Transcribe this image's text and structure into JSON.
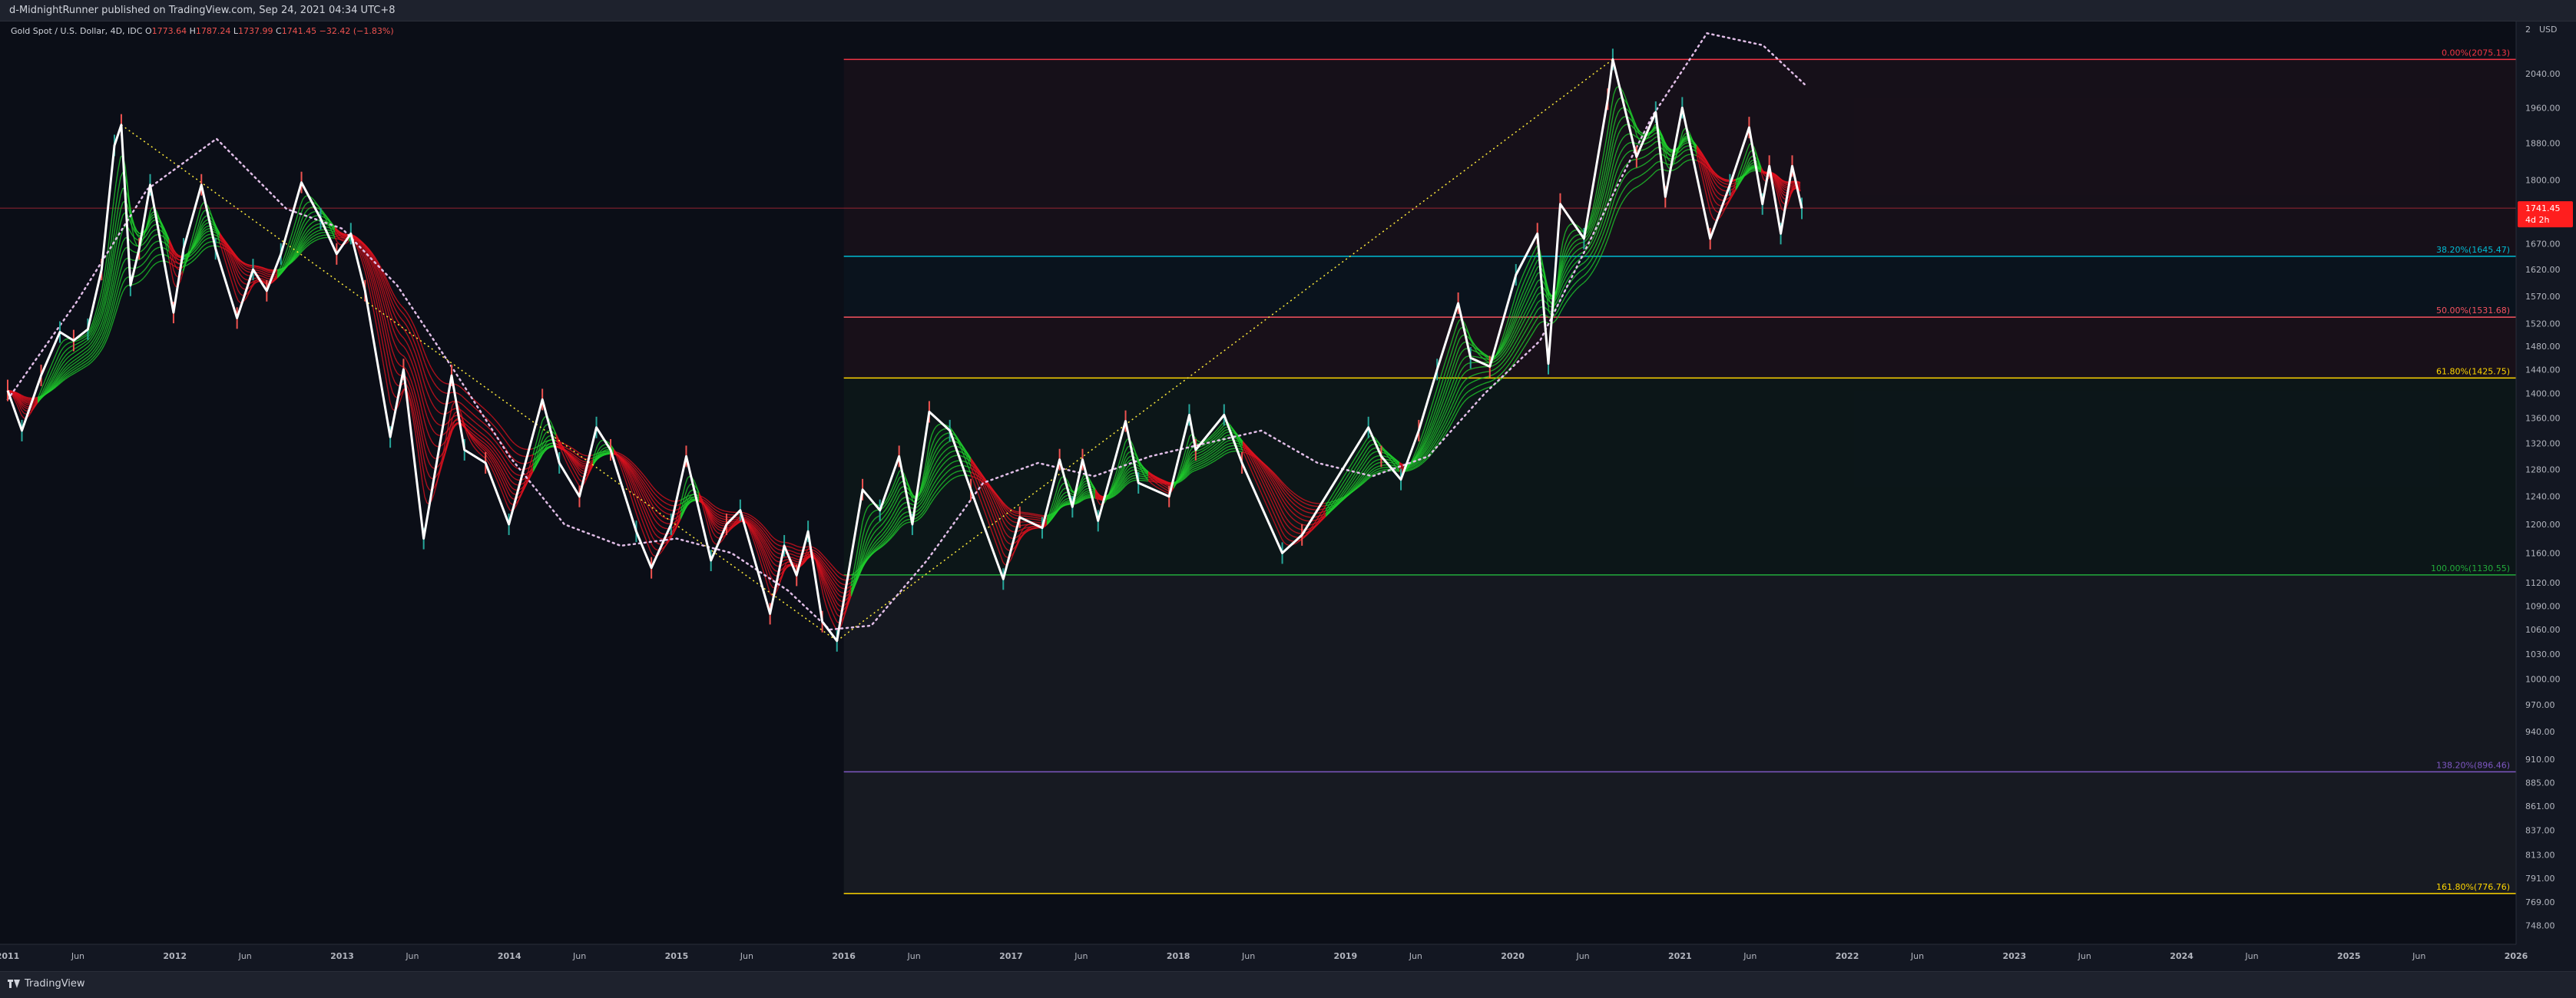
{
  "header": {
    "published_text": "d-MidnightRunner published on TradingView.com, Sep 24, 2021 04:34 UTC+8"
  },
  "footer": {
    "brand": "TradingView",
    "logo_icon": "tradingview-logo-icon"
  },
  "chart_data": {
    "type": "line",
    "symbol_title": "Gold Spot / U.S. Dollar, 4D, IDC",
    "ohlc": {
      "open_label": "O",
      "open": "1773.64",
      "high_label": "H",
      "high": "1787.24",
      "low_label": "L",
      "low": "1737.99",
      "close_label": "C",
      "close": "1741.45",
      "change": "−32.42 (−1.83%)"
    },
    "currency": "USD",
    "price_scale_icon": "2",
    "last_price": {
      "value": 1741.45,
      "label": "1741.45",
      "countdown": "4d 2h",
      "color": "#ff1e1e"
    },
    "y_scale": "log",
    "ylim": [
      735,
      2160
    ],
    "xlim": [
      "2011-01-01",
      "2026-01-01"
    ],
    "y_ticks": [
      "2040.00",
      "1960.00",
      "1880.00",
      "1800.00",
      "1670.00",
      "1620.00",
      "1570.00",
      "1520.00",
      "1480.00",
      "1440.00",
      "1400.00",
      "1360.00",
      "1320.00",
      "1280.00",
      "1240.00",
      "1200.00",
      "1160.00",
      "1120.00",
      "1090.00",
      "1060.00",
      "1030.00",
      "1000.00",
      "970.00",
      "940.00",
      "910.00",
      "885.00",
      "861.00",
      "837.00",
      "813.00",
      "791.00",
      "769.00",
      "748.00"
    ],
    "x_ticks": [
      {
        "label": "2011",
        "t": 2011.0,
        "bold": true
      },
      {
        "label": "Jun",
        "t": 2011.42
      },
      {
        "label": "2012",
        "t": 2012.0,
        "bold": true
      },
      {
        "label": "Jun",
        "t": 2012.42
      },
      {
        "label": "2013",
        "t": 2013.0,
        "bold": true
      },
      {
        "label": "Jun",
        "t": 2013.42
      },
      {
        "label": "2014",
        "t": 2014.0,
        "bold": true
      },
      {
        "label": "Jun",
        "t": 2014.42
      },
      {
        "label": "2015",
        "t": 2015.0,
        "bold": true
      },
      {
        "label": "Jun",
        "t": 2015.42
      },
      {
        "label": "2016",
        "t": 2016.0,
        "bold": true
      },
      {
        "label": "Jun",
        "t": 2016.42
      },
      {
        "label": "2017",
        "t": 2017.0,
        "bold": true
      },
      {
        "label": "Jun",
        "t": 2017.42
      },
      {
        "label": "2018",
        "t": 2018.0,
        "bold": true
      },
      {
        "label": "Jun",
        "t": 2018.42
      },
      {
        "label": "2019",
        "t": 2019.0,
        "bold": true
      },
      {
        "label": "Jun",
        "t": 2019.42
      },
      {
        "label": "2020",
        "t": 2020.0,
        "bold": true
      },
      {
        "label": "Jun",
        "t": 2020.42
      },
      {
        "label": "2021",
        "t": 2021.0,
        "bold": true
      },
      {
        "label": "Jun",
        "t": 2021.42
      },
      {
        "label": "2022",
        "t": 2022.0,
        "bold": true
      },
      {
        "label": "Jun",
        "t": 2022.42
      },
      {
        "label": "2023",
        "t": 2023.0,
        "bold": true
      },
      {
        "label": "Jun",
        "t": 2023.42
      },
      {
        "label": "2024",
        "t": 2024.0,
        "bold": true
      },
      {
        "label": "Jun",
        "t": 2024.42
      },
      {
        "label": "2025",
        "t": 2025.0,
        "bold": true
      },
      {
        "label": "Jun",
        "t": 2025.42
      },
      {
        "label": "2026",
        "t": 2026.0,
        "bold": true
      }
    ],
    "fib_levels": [
      {
        "ratio": 0.0,
        "label": "0.00%(2075.13)",
        "price": 2075.13,
        "color": "#f23645"
      },
      {
        "ratio": 0.382,
        "label": "38.20%(1645.47)",
        "price": 1645.47,
        "color": "#00bcd4"
      },
      {
        "ratio": 0.5,
        "label": "50.00%(1531.68)",
        "price": 1531.68,
        "color": "#f7525f"
      },
      {
        "ratio": 0.618,
        "label": "61.80%(1425.75)",
        "price": 1425.75,
        "color": "#ffd600"
      },
      {
        "ratio": 1.0,
        "label": "100.00%(1130.55)",
        "price": 1130.55,
        "color": "#22ab3a"
      },
      {
        "ratio": 1.382,
        "label": "138.20%(896.46)",
        "price": 896.46,
        "color": "#7e57c2"
      },
      {
        "ratio": 1.618,
        "label": "161.80%(776.76)",
        "price": 776.76,
        "color": "#ffd600"
      }
    ],
    "fib_start_date": "2016-01-01",
    "horizontal_line": {
      "price": 1741.45,
      "color": "#f23645"
    },
    "trend_lines": [
      {
        "from": [
          "2011-09-06",
          1921
        ],
        "to": [
          "2015-12-17",
          1046
        ],
        "color": "#ffeb3b",
        "style": "dotted"
      },
      {
        "from": [
          "2015-12-17",
          1046
        ],
        "to": [
          "2020-08-07",
          2075
        ],
        "color": "#ffeb3b",
        "style": "dotted"
      }
    ],
    "series": [
      {
        "name": "price",
        "color": "#ffffff",
        "points": [
          [
            "2011-01-01",
            1405
          ],
          [
            "2011-02-01",
            1340
          ],
          [
            "2011-03-15",
            1430
          ],
          [
            "2011-04-25",
            1505
          ],
          [
            "2011-05-25",
            1490
          ],
          [
            "2011-06-25",
            1510
          ],
          [
            "2011-07-25",
            1620
          ],
          [
            "2011-08-22",
            1875
          ],
          [
            "2011-09-06",
            1921
          ],
          [
            "2011-09-26",
            1590
          ],
          [
            "2011-10-15",
            1660
          ],
          [
            "2011-11-08",
            1790
          ],
          [
            "2011-12-29",
            1540
          ],
          [
            "2012-01-20",
            1660
          ],
          [
            "2012-02-28",
            1790
          ],
          [
            "2012-03-30",
            1660
          ],
          [
            "2012-05-16",
            1530
          ],
          [
            "2012-06-20",
            1620
          ],
          [
            "2012-07-20",
            1580
          ],
          [
            "2012-08-20",
            1650
          ],
          [
            "2012-10-04",
            1795
          ],
          [
            "2012-11-15",
            1720
          ],
          [
            "2012-12-20",
            1650
          ],
          [
            "2013-01-20",
            1690
          ],
          [
            "2013-02-20",
            1580
          ],
          [
            "2013-04-16",
            1330
          ],
          [
            "2013-05-15",
            1440
          ],
          [
            "2013-06-28",
            1180
          ],
          [
            "2013-08-28",
            1430
          ],
          [
            "2013-09-25",
            1310
          ],
          [
            "2013-11-10",
            1290
          ],
          [
            "2013-12-31",
            1200
          ],
          [
            "2014-03-14",
            1390
          ],
          [
            "2014-04-20",
            1290
          ],
          [
            "2014-06-03",
            1240
          ],
          [
            "2014-07-10",
            1345
          ],
          [
            "2014-08-10",
            1310
          ],
          [
            "2014-10-05",
            1190
          ],
          [
            "2014-11-07",
            1140
          ],
          [
            "2014-12-20",
            1200
          ],
          [
            "2015-01-22",
            1300
          ],
          [
            "2015-03-17",
            1150
          ],
          [
            "2015-04-20",
            1200
          ],
          [
            "2015-05-20",
            1220
          ],
          [
            "2015-07-24",
            1080
          ],
          [
            "2015-08-24",
            1170
          ],
          [
            "2015-09-20",
            1130
          ],
          [
            "2015-10-15",
            1190
          ],
          [
            "2015-11-15",
            1070
          ],
          [
            "2015-12-17",
            1046
          ],
          [
            "2016-02-11",
            1250
          ],
          [
            "2016-03-20",
            1220
          ],
          [
            "2016-05-01",
            1300
          ],
          [
            "2016-05-30",
            1200
          ],
          [
            "2016-07-06",
            1370
          ],
          [
            "2016-08-20",
            1340
          ],
          [
            "2016-10-05",
            1250
          ],
          [
            "2016-12-15",
            1125
          ],
          [
            "2017-01-20",
            1210
          ],
          [
            "2017-03-10",
            1195
          ],
          [
            "2017-04-17",
            1295
          ],
          [
            "2017-05-15",
            1225
          ],
          [
            "2017-06-06",
            1295
          ],
          [
            "2017-07-10",
            1205
          ],
          [
            "2017-09-08",
            1355
          ],
          [
            "2017-10-06",
            1260
          ],
          [
            "2017-12-12",
            1240
          ],
          [
            "2018-01-25",
            1365
          ],
          [
            "2018-02-08",
            1310
          ],
          [
            "2018-04-11",
            1365
          ],
          [
            "2018-05-20",
            1290
          ],
          [
            "2018-08-16",
            1160
          ],
          [
            "2018-09-28",
            1185
          ],
          [
            "2019-02-20",
            1345
          ],
          [
            "2019-03-20",
            1300
          ],
          [
            "2019-05-02",
            1265
          ],
          [
            "2019-06-10",
            1340
          ],
          [
            "2019-07-20",
            1440
          ],
          [
            "2019-09-04",
            1557
          ],
          [
            "2019-10-01",
            1460
          ],
          [
            "2019-11-12",
            1445
          ],
          [
            "2020-01-08",
            1610
          ],
          [
            "2020-02-24",
            1690
          ],
          [
            "2020-03-19",
            1450
          ],
          [
            "2020-04-14",
            1750
          ],
          [
            "2020-06-05",
            1680
          ],
          [
            "2020-07-27",
            1980
          ],
          [
            "2020-08-07",
            2075
          ],
          [
            "2020-09-28",
            1850
          ],
          [
            "2020-11-09",
            1950
          ],
          [
            "2020-11-30",
            1765
          ],
          [
            "2021-01-06",
            1960
          ],
          [
            "2021-03-08",
            1680
          ],
          [
            "2021-04-20",
            1790
          ],
          [
            "2021-06-01",
            1915
          ],
          [
            "2021-06-30",
            1750
          ],
          [
            "2021-07-15",
            1830
          ],
          [
            "2021-08-09",
            1690
          ],
          [
            "2021-09-03",
            1830
          ],
          [
            "2021-09-24",
            1741
          ]
        ]
      },
      {
        "name": "dotted-ma",
        "color": "#e1bee7",
        "points": [
          [
            "2011-01-01",
            1390
          ],
          [
            "2011-06-01",
            1560
          ],
          [
            "2011-11-01",
            1780
          ],
          [
            "2012-04-01",
            1890
          ],
          [
            "2012-09-01",
            1740
          ],
          [
            "2013-01-01",
            1700
          ],
          [
            "2013-05-01",
            1590
          ],
          [
            "2013-09-01",
            1440
          ],
          [
            "2014-01-01",
            1300
          ],
          [
            "2014-05-01",
            1200
          ],
          [
            "2014-09-01",
            1170
          ],
          [
            "2015-01-01",
            1180
          ],
          [
            "2015-05-01",
            1160
          ],
          [
            "2015-09-01",
            1110
          ],
          [
            "2015-12-01",
            1060
          ],
          [
            "2016-03-01",
            1065
          ],
          [
            "2016-07-01",
            1150
          ],
          [
            "2016-11-01",
            1260
          ],
          [
            "2017-03-01",
            1290
          ],
          [
            "2017-07-01",
            1270
          ],
          [
            "2017-11-01",
            1300
          ],
          [
            "2018-03-01",
            1320
          ],
          [
            "2018-07-01",
            1340
          ],
          [
            "2018-11-01",
            1290
          ],
          [
            "2019-03-01",
            1270
          ],
          [
            "2019-07-01",
            1300
          ],
          [
            "2019-11-01",
            1400
          ],
          [
            "2020-03-01",
            1490
          ],
          [
            "2020-07-01",
            1700
          ],
          [
            "2020-11-01",
            1940
          ],
          [
            "2021-03-01",
            2140
          ],
          [
            "2021-07-01",
            2110
          ],
          [
            "2021-09-30",
            2015
          ]
        ]
      }
    ]
  }
}
